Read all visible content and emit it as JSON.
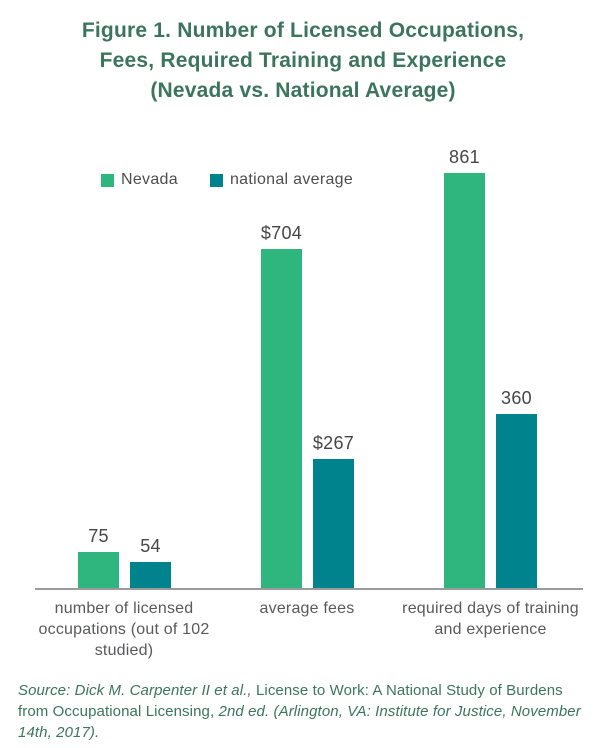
{
  "page": {
    "title_lines": [
      "Figure 1. Number of Licensed Occupations,",
      "Fees, Required Training and Experience",
      "(Nevada vs. National Average)"
    ]
  },
  "colors": {
    "nevada_green": "#2FB57E",
    "national_teal": "#00838C",
    "title_green": "#3B755D",
    "axis_gray": "#9b9b9b",
    "label_gray": "#58595b",
    "value_gray": "#464646"
  },
  "chart_data": {
    "type": "bar",
    "title": "Figure 1. Number of Licensed Occupations, Fees, Required Training and Experience (Nevada vs. National Average)",
    "categories": [
      "number of licensed occupations (out of 102 studied)",
      "average fees",
      "required days of training and experience"
    ],
    "series": [
      {
        "name": "Nevada",
        "color": "#2FB57E",
        "values": [
          75,
          704,
          861
        ],
        "value_labels": [
          "75",
          "$704",
          "861"
        ]
      },
      {
        "name": "national average",
        "color": "#00838C",
        "values": [
          54,
          267,
          360
        ],
        "value_labels": [
          "54",
          "$267",
          "360"
        ]
      }
    ],
    "ylim": [
      0,
      900
    ],
    "xlabel": "",
    "ylabel": "",
    "grid": false,
    "y_axis_shown": false,
    "legend_position": "top-left",
    "value_labels_shown": true
  },
  "source": {
    "segments": [
      {
        "text": "Source: Dick M. Carpenter II et al., ",
        "style": "italic"
      },
      {
        "text": "License to Work: A National Study of Burdens from Occupational Licensing, ",
        "style": "roman"
      },
      {
        "text": "2nd ed. (Arlington, VA: Institute for Justice, November 14th, 2017).",
        "style": "italic"
      }
    ]
  }
}
